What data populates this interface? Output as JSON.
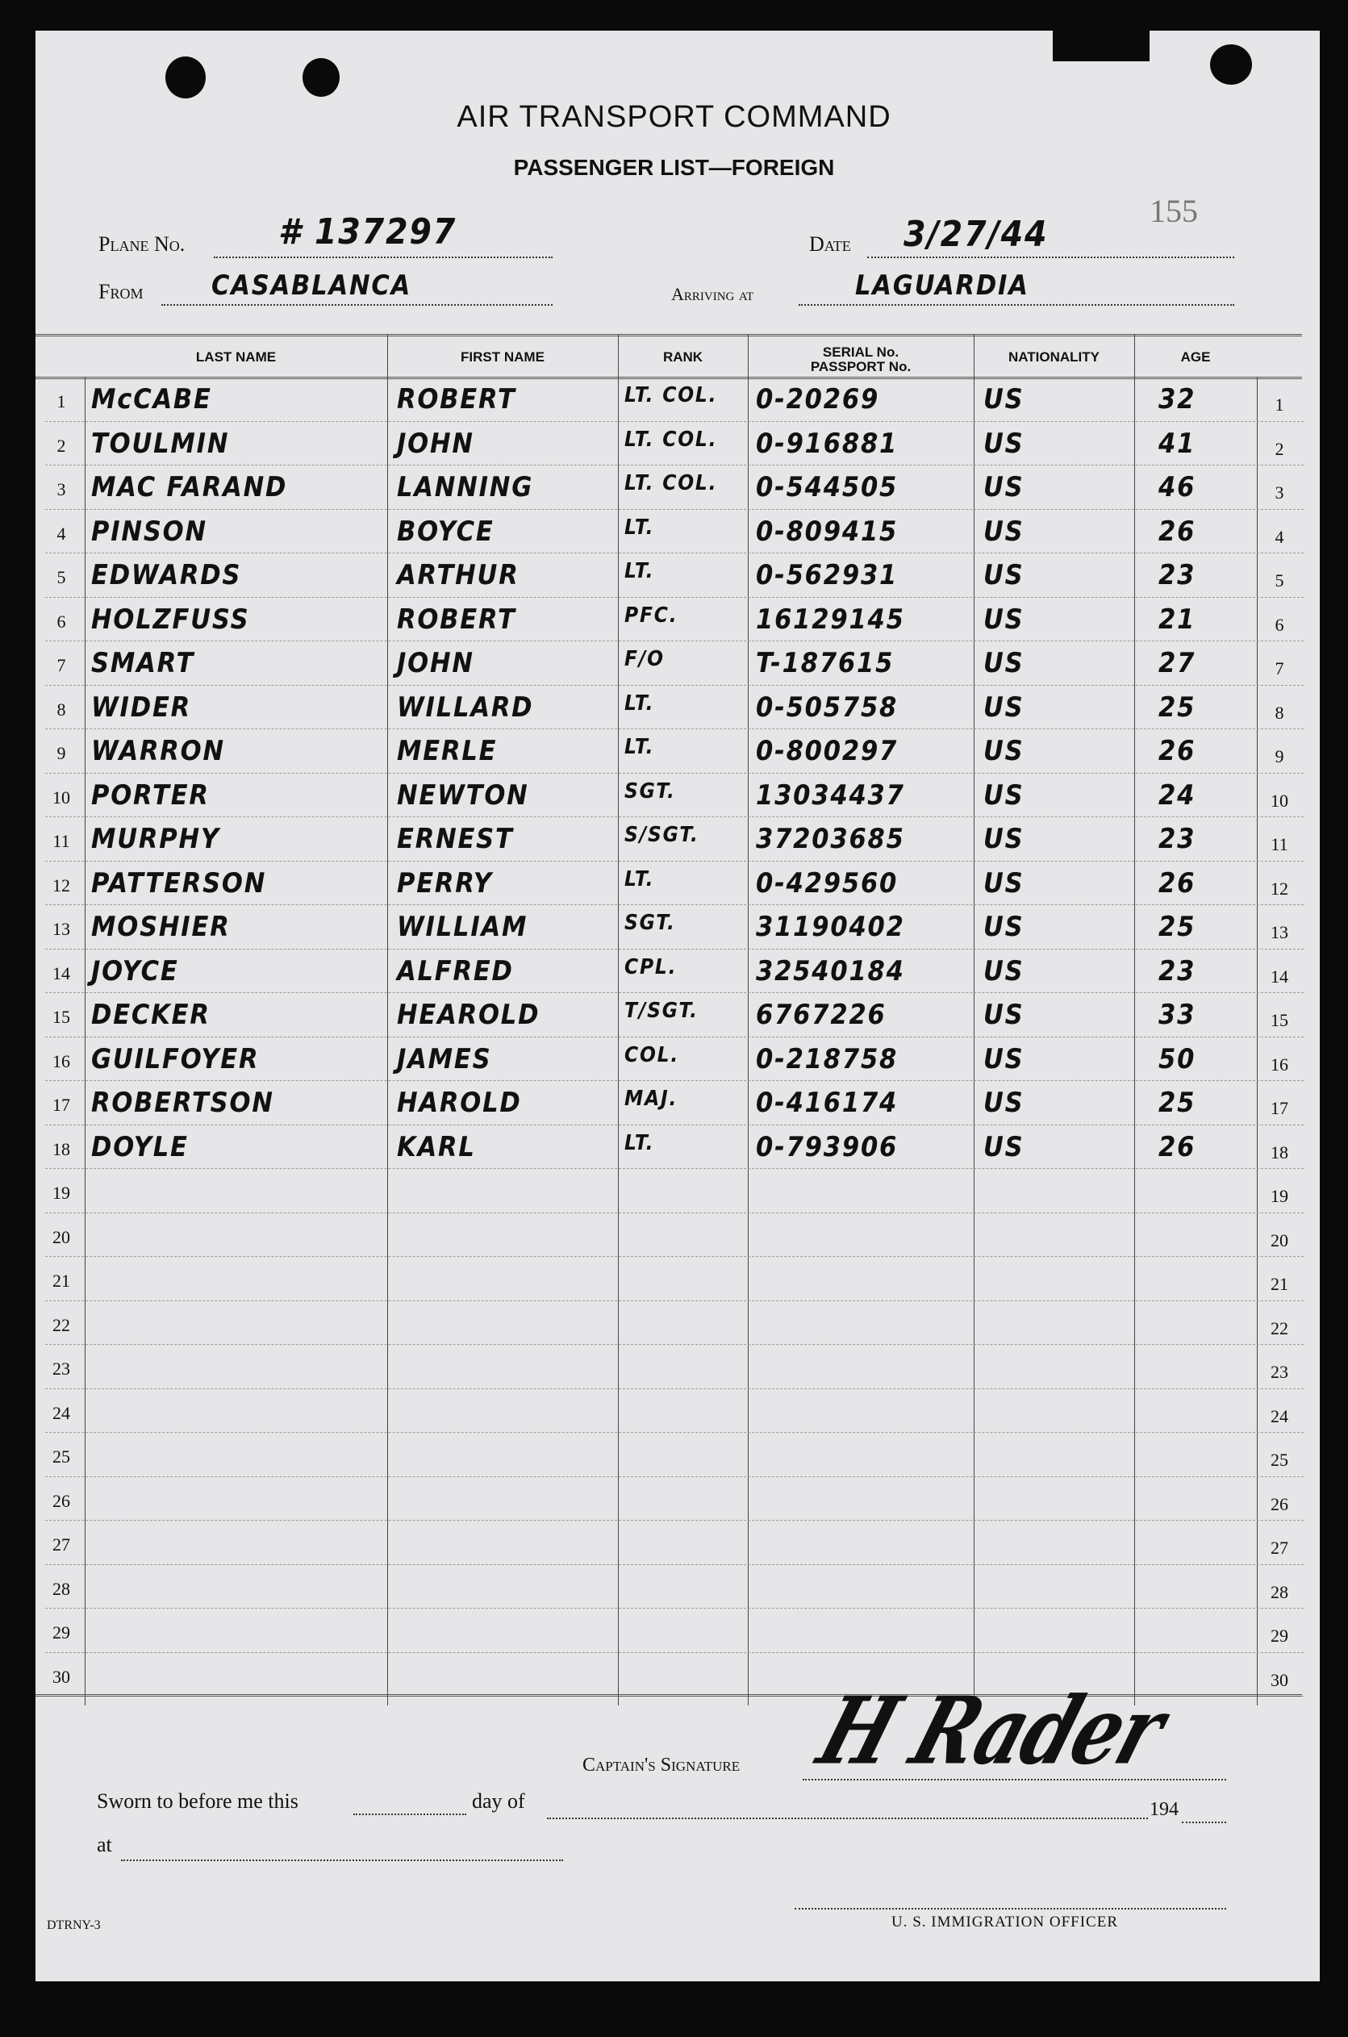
{
  "form": {
    "title": "AIR TRANSPORT COMMAND",
    "subtitle": "PASSENGER LIST—FOREIGN",
    "page_number": "155",
    "plane_no_label": "Plane No.",
    "plane_no": "# 137297",
    "date_label": "Date",
    "date": "3/27/44",
    "from_label": "From",
    "from": "CASABLANCA",
    "arriving_label": "Arriving at",
    "arriving": "LAGUARDIA",
    "form_code": "DTRNY-3"
  },
  "table": {
    "headers": [
      "LAST NAME",
      "FIRST NAME",
      "RANK",
      "SERIAL No.\nPASSPORT No.",
      "NATIONALITY",
      "AGE"
    ],
    "row_numbers": [
      "1",
      "2",
      "3",
      "4",
      "5",
      "6",
      "7",
      "8",
      "9",
      "10",
      "11",
      "12",
      "13",
      "14",
      "15",
      "16",
      "17",
      "18",
      "19",
      "20",
      "21",
      "22",
      "23",
      "24",
      "25",
      "26",
      "27",
      "28",
      "29",
      "30"
    ],
    "rows": [
      [
        "McCABE",
        "ROBERT",
        "LT. COL.",
        "0-20269",
        "US",
        "32"
      ],
      [
        "TOULMIN",
        "JOHN",
        "LT. COL.",
        "0-916881",
        "US",
        "41"
      ],
      [
        "MAC FARAND",
        "LANNING",
        "LT. COL.",
        "0-544505",
        "US",
        "46"
      ],
      [
        "PINSON",
        "BOYCE",
        "LT.",
        "0-809415",
        "US",
        "26"
      ],
      [
        "EDWARDS",
        "ARTHUR",
        "LT.",
        "0-562931",
        "US",
        "23"
      ],
      [
        "HOLZFUSS",
        "ROBERT",
        "PFC.",
        "16129145",
        "US",
        "21"
      ],
      [
        "SMART",
        "JOHN",
        "F/O",
        "T-187615",
        "US",
        "27"
      ],
      [
        "WIDER",
        "WILLARD",
        "LT.",
        "0-505758",
        "US",
        "25"
      ],
      [
        "WARRON",
        "MERLE",
        "LT.",
        "0-800297",
        "US",
        "26"
      ],
      [
        "PORTER",
        "NEWTON",
        "SGT.",
        "13034437",
        "US",
        "24"
      ],
      [
        "MURPHY",
        "ERNEST",
        "S/SGT.",
        "37203685",
        "US",
        "23"
      ],
      [
        "PATTERSON",
        "PERRY",
        "LT.",
        "0-429560",
        "US",
        "26"
      ],
      [
        "MOSHIER",
        "WILLIAM",
        "SGT.",
        "31190402",
        "US",
        "25"
      ],
      [
        "JOYCE",
        "ALFRED",
        "CPL.",
        "32540184",
        "US",
        "23"
      ],
      [
        "DECKER",
        "HEAROLD",
        "T/SGT.",
        "6767226",
        "US",
        "33"
      ],
      [
        "GUILFOYER",
        "JAMES",
        "COL.",
        "0-218758",
        "US",
        "50"
      ],
      [
        "ROBERTSON",
        "HAROLD",
        "MAJ.",
        "0-416174",
        "US",
        "25"
      ],
      [
        "DOYLE",
        "KARL",
        "LT.",
        "0-793906",
        "US",
        "26"
      ]
    ]
  },
  "footer": {
    "captain_signature_label": "Captain's Signature",
    "captain_signature": "H Rader",
    "sworn_text": "Sworn to before me this",
    "day_of": "day of",
    "year_prefix": "194",
    "at_label": "at",
    "officer_label": "U. S. IMMIGRATION OFFICER"
  }
}
